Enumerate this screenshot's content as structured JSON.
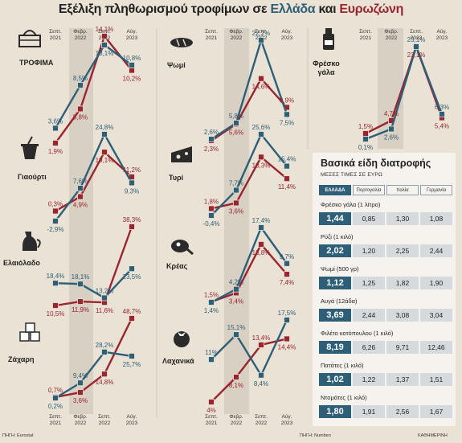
{
  "title": {
    "prefix": "Εξέλιξη πληθωρισμού τροφίμων σε ",
    "greece": "Ελλάδα",
    "and": " και ",
    "eurozone": "Ευρωζώνη"
  },
  "colors": {
    "greece": "#2e5f78",
    "eurozone": "#9a2530",
    "band": "#d8d0c2"
  },
  "periods": [
    "Σεπτ. 2021",
    "Φεβρ. 2022",
    "Σεπτ. 2022",
    "Αύγ. 2023"
  ],
  "chart_data": [
    {
      "type": "line",
      "title": "ΤΡΟΦΙΜΑ",
      "icon": "basket-icon",
      "x": [
        "Σεπτ. 2021",
        "Φεβρ. 2022",
        "Σεπτ. 2022",
        "Αύγ. 2023"
      ],
      "series": [
        {
          "key": "greece",
          "values": [
            3.6,
            8.5,
            13.1,
            10.8
          ],
          "labels": [
            "3,6%",
            "8,5%",
            "13,1%",
            "10,8%"
          ]
        },
        {
          "key": "eurozone",
          "values": [
            1.9,
            5.8,
            14.1,
            10.2
          ],
          "labels": [
            "1,9%",
            "5,8%",
            "14,1%",
            "10,2%"
          ]
        }
      ]
    },
    {
      "type": "line",
      "title": "Γιαούρτι",
      "icon": "yogurt-icon",
      "x": [
        "Σεπτ. 2021",
        "Φεβρ. 2022",
        "Σεπτ. 2022",
        "Αύγ. 2023"
      ],
      "series": [
        {
          "key": "greece",
          "values": [
            -2.9,
            7.6,
            24.8,
            9.3
          ],
          "labels": [
            "-2,9%",
            "7,6%",
            "24,8%",
            "9,3%"
          ]
        },
        {
          "key": "eurozone",
          "values": [
            0.3,
            4.9,
            19.1,
            11.2
          ],
          "labels": [
            "0,3%",
            "4,9%",
            "19,1%",
            "11,2%"
          ]
        }
      ]
    },
    {
      "type": "line",
      "title": "Ελαιόλαδο",
      "icon": "oil-jug-icon",
      "x": [
        "Σεπτ. 2021",
        "Φεβρ. 2022",
        "Σεπτ. 2022",
        "Αύγ. 2023"
      ],
      "series": [
        {
          "key": "greece",
          "values": [
            18.4,
            18.1,
            13.2,
            23.5
          ],
          "labels": [
            "18,4%",
            "18,1%",
            "13,2%",
            "23,5%"
          ]
        },
        {
          "key": "eurozone",
          "values": [
            10.5,
            11.9,
            11.6,
            38.3
          ],
          "labels": [
            "10,5%",
            "11,9%",
            "11,6%",
            "38,3%"
          ]
        }
      ]
    },
    {
      "type": "line",
      "title": "Ζάχαρη",
      "icon": "sugar-cubes-icon",
      "x": [
        "Σεπτ. 2021",
        "Φεβρ. 2022",
        "Σεπτ. 2022",
        "Αύγ. 2023"
      ],
      "series": [
        {
          "key": "greece",
          "values": [
            0.2,
            9.4,
            28.2,
            25.7
          ],
          "labels": [
            "0,2%",
            "9,4%",
            "28,2%",
            "25,7%"
          ]
        },
        {
          "key": "eurozone",
          "values": [
            0.7,
            3.6,
            14.8,
            48.7
          ],
          "labels": [
            "0,7%",
            "3,6%",
            "14,8%",
            "48,7%"
          ]
        }
      ]
    },
    {
      "type": "line",
      "title": "Ψωμί",
      "icon": "bread-icon",
      "x": [
        "Σεπτ. 2021",
        "Φεβρ. 2022",
        "Σεπτ. 2022",
        "Αύγ. 2023"
      ],
      "series": [
        {
          "key": "greece",
          "values": [
            2.6,
            5.8,
            22.2,
            7.5
          ],
          "labels": [
            "2,6%",
            "5,8%",
            "22,2%",
            "7,5%"
          ]
        },
        {
          "key": "eurozone",
          "values": [
            2.3,
            5.6,
            14.6,
            8.9
          ],
          "labels": [
            "2,3%",
            "5,6%",
            "14,6%",
            "8,9%"
          ]
        }
      ]
    },
    {
      "type": "line",
      "title": "Τυρί",
      "icon": "cheese-icon",
      "x": [
        "Σεπτ. 2021",
        "Φεβρ. 2022",
        "Σεπτ. 2022",
        "Αύγ. 2023"
      ],
      "series": [
        {
          "key": "greece",
          "values": [
            -0.4,
            7.7,
            25.6,
            15.4
          ],
          "labels": [
            "-0,4%",
            "7,7%",
            "25,6%",
            "15,4%"
          ]
        },
        {
          "key": "eurozone",
          "values": [
            1.8,
            3.6,
            18.3,
            11.4
          ],
          "labels": [
            "1,8%",
            "3,6%",
            "18,3%",
            "11,4%"
          ]
        }
      ]
    },
    {
      "type": "line",
      "title": "Κρέας",
      "icon": "meat-icon",
      "x": [
        "Σεπτ. 2021",
        "Φεβρ. 2022",
        "Σεπτ. 2022",
        "Αύγ. 2023"
      ],
      "series": [
        {
          "key": "greece",
          "values": [
            1.4,
            4.2,
            17.4,
            9.7
          ],
          "labels": [
            "1,4%",
            "4,2%",
            "17,4%",
            "9,7%"
          ]
        },
        {
          "key": "eurozone",
          "values": [
            1.5,
            3.4,
            13.8,
            7.4
          ],
          "labels": [
            "1,5%",
            "3,4%",
            "13,8%",
            "7,4%"
          ]
        }
      ]
    },
    {
      "type": "line",
      "title": "Λαχανικά",
      "icon": "tomato-icon",
      "x": [
        "Σεπτ. 2021",
        "Φεβρ. 2022",
        "Σεπτ. 2022",
        "Αύγ. 2023"
      ],
      "series": [
        {
          "key": "greece",
          "values": [
            11,
            15.1,
            8.4,
            17.5
          ],
          "labels": [
            "11%",
            "15,1%",
            "8,4%",
            "17,5%"
          ]
        },
        {
          "key": "eurozone",
          "values": [
            4,
            8.1,
            13.4,
            14.4
          ],
          "labels": [
            "4%",
            "8,1%",
            "13,4%",
            "14,4%"
          ]
        }
      ]
    },
    {
      "type": "line",
      "title": "Φρέσκο γάλα",
      "icon": "milk-bottle-icon",
      "x": [
        "Σεπτ. 2021",
        "Φεβρ. 2022",
        "Σεπτ. 2022",
        "Αύγ. 2023"
      ],
      "series": [
        {
          "key": "greece",
          "values": [
            0.1,
            2.6,
            23.1,
            6.3
          ],
          "labels": [
            "0,1%",
            "2,6%",
            "23,1%",
            "6,3%"
          ]
        },
        {
          "key": "eurozone",
          "values": [
            1.5,
            4.7,
            23.1,
            5.4
          ],
          "labels": [
            "1,5%",
            "4,7%",
            "23,1%",
            "5,4%"
          ]
        }
      ]
    },
    {
      "type": "table",
      "title": "Βασικά είδη διατροφής",
      "subtitle": "ΜΕΣΕΣ ΤΙΜΕΣ ΣΕ ΕΥΡΩ",
      "columns": [
        "ΕΛΛΑΔΑ",
        "Πορτογαλία",
        "Ιταλία",
        "Γερμανία"
      ],
      "rows": [
        {
          "label": "Φρέσκο γάλα (1 λίτρο)",
          "values": [
            "1,44",
            "0,85",
            "1,30",
            "1,08"
          ]
        },
        {
          "label": "Ρύζι (1 κιλό)",
          "values": [
            "2,02",
            "1,20",
            "2,25",
            "2,44"
          ]
        },
        {
          "label": "Ψωμί (500 γρ)",
          "values": [
            "1,12",
            "1,25",
            "1,82",
            "1,90"
          ]
        },
        {
          "label": "Αυγά (12άδα)",
          "values": [
            "3,69",
            "2,44",
            "3,08",
            "3,04"
          ]
        },
        {
          "label": "Φιλέτο κοτόπουλου (1 κιλό)",
          "values": [
            "8,19",
            "6,26",
            "9,71",
            "12,46"
          ]
        },
        {
          "label": "Πατάτες (1 κιλό)",
          "values": [
            "1,02",
            "1,22",
            "1,37",
            "1,51"
          ]
        },
        {
          "label": "Ντομάτες (1 κιλό)",
          "values": [
            "1,80",
            "1,91",
            "2,56",
            "1,67"
          ]
        }
      ]
    }
  ],
  "sources": {
    "left": "ΠΗΓΗ: Eurostat",
    "middle": "ΠΗΓΗ: Numbeo",
    "right": "ΚΑΘΗΜΕΡΙΝΗ"
  }
}
